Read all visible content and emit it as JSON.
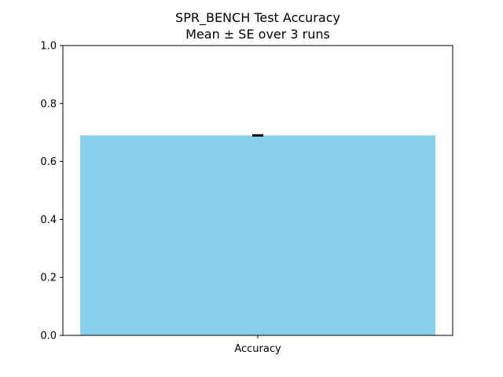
{
  "chart_data": {
    "type": "bar",
    "title": "SPR_BENCH Test Accuracy",
    "subtitle": "Mean ± SE over 3 runs",
    "xlabel": "",
    "ylabel": "",
    "categories": [
      "Accuracy"
    ],
    "values": [
      0.69
    ],
    "errors": [
      0.002
    ],
    "ylim": [
      0,
      1.0
    ],
    "yticks": [
      0.0,
      0.2,
      0.4,
      0.6,
      0.8,
      1.0
    ],
    "ytick_labels": [
      "0.0",
      "0.2",
      "0.4",
      "0.6",
      "0.8",
      "1.0"
    ],
    "grid": false,
    "bar_color": "#87ceeb",
    "error_color": "#000000"
  }
}
